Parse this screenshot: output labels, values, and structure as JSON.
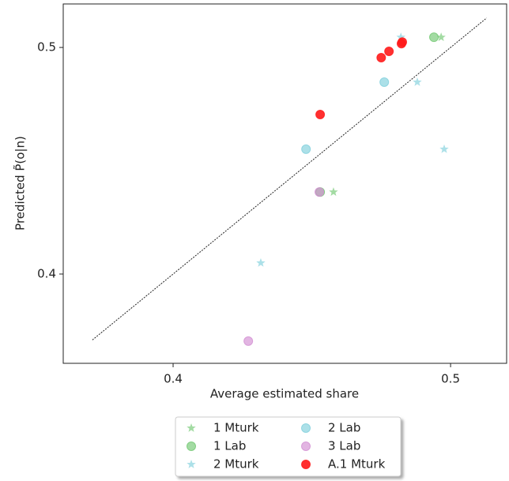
{
  "chart_data": {
    "type": "scatter",
    "x_label": "Average estimated share",
    "y_label": "Predicted P̃(o|n)",
    "xlim": [
      0.3604,
      0.5202
    ],
    "ylim": [
      0.3606,
      0.5192
    ],
    "xticks": [
      0.4,
      0.5
    ],
    "yticks": [
      0.4,
      0.5
    ],
    "identity_line": true,
    "legend": "lower center, outside",
    "series": [
      {
        "name": "1 Mturk",
        "color": "#72c872",
        "marker": "star",
        "x": [
          0.4966,
          0.4578
        ],
        "values": [
          0.5045,
          0.4362
        ]
      },
      {
        "name": "1 Lab",
        "color": "#72c872",
        "marker": "circle",
        "x": [
          0.494,
          0.453
        ],
        "values": [
          0.5045,
          0.4362
        ]
      },
      {
        "name": "2 Mturk",
        "color": "#7fd0dc",
        "marker": "star",
        "x": [
          0.4821,
          0.488,
          0.4977,
          0.4316
        ],
        "values": [
          0.5045,
          0.4847,
          0.4551,
          0.4049
        ]
      },
      {
        "name": "2 Lab",
        "color": "#7fd0dc",
        "marker": "circle",
        "x": [
          0.4761,
          0.4479
        ],
        "values": [
          0.4847,
          0.4551
        ]
      },
      {
        "name": "3 Lab",
        "color": "#d28ed2",
        "marker": "circle",
        "x": [
          0.4527,
          0.4271
        ],
        "values": [
          0.4362,
          0.3704
        ]
      },
      {
        "name": "A.1 Mturk",
        "color": "#ff1a1a",
        "marker": "circle",
        "x": [
          0.453,
          0.475,
          0.4778,
          0.4823,
          0.4826
        ],
        "values": [
          0.4704,
          0.4955,
          0.4983,
          0.5017,
          0.5024
        ]
      }
    ]
  }
}
